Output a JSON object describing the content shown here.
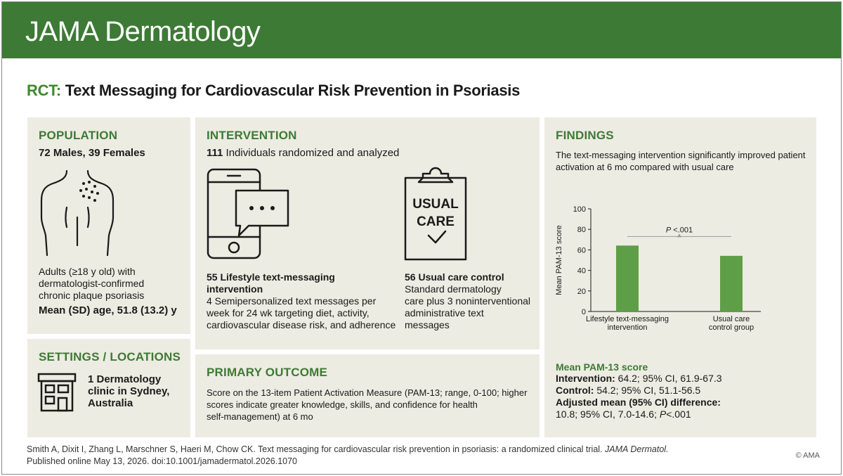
{
  "header": {
    "journal": "JAMA Dermatology"
  },
  "title": {
    "prefix": "RCT:",
    "text": "Text Messaging for Cardiovascular Risk Prevention in Psoriasis"
  },
  "population": {
    "heading": "POPULATION",
    "counts": "72 Males, 39 Females",
    "desc_lines": [
      "Adults (≥18 y old) with",
      "dermatologist-confirmed",
      "chronic plaque psoriasis"
    ],
    "age": "Mean (SD) age, 51.8 (13.2) y",
    "icon": "torso-psoriasis-icon"
  },
  "settings": {
    "heading": "SETTINGS / LOCATIONS",
    "lines": [
      "1 Dermatology",
      "clinic in Sydney,",
      "Australia"
    ],
    "icon": "building-icon"
  },
  "intervention": {
    "heading": "INTERVENTION",
    "randomized_count": "111",
    "randomized_text": "Individuals randomized and analyzed",
    "arm1": {
      "count": "55",
      "title_line1": "Lifestyle text-messaging",
      "title_line2": "intervention",
      "desc_lines": [
        "4 Semipersonalized text messages per",
        "week for 24 wk targeting diet, activity,",
        "cardiovascular disease risk, and adherence"
      ],
      "icon": "phone-message-icon"
    },
    "arm2": {
      "count": "56",
      "title": "Usual care control",
      "desc_lines": [
        "Standard dermatology",
        "care plus 3 noninterventional",
        "administrative text",
        "messages"
      ],
      "icon": "clipboard-icon",
      "icon_text_1": "USUAL",
      "icon_text_2": "CARE"
    }
  },
  "outcome": {
    "heading": "PRIMARY OUTCOME",
    "lines": [
      "Score on the 13-item Patient Activation Measure (PAM-13; range, 0-100; higher",
      "scores indicate greater knowledge, skills, and confidence for health",
      "self-management) at 6 mo"
    ]
  },
  "findings": {
    "heading": "FINDINGS",
    "summary_lines": [
      "The text-messaging intervention significantly improved patient",
      "activation at 6 mo compared with usual care"
    ],
    "score_heading": "Mean PAM-13 score",
    "intervention_label": "Intervention:",
    "intervention_value": "64.2; 95% CI, 61.9-67.3",
    "control_label": "Control:",
    "control_value": "54.2; 95% CI, 51.1-56.5",
    "adjusted_label": "Adjusted mean (95% CI) difference:",
    "adjusted_value_a": "10.8; 95% CI, 7.0-14.6; ",
    "adjusted_p": "P",
    "adjusted_value_b": "<.001"
  },
  "chart_data": {
    "type": "bar",
    "categories": [
      [
        "Lifestyle text-messaging",
        "intervention"
      ],
      [
        "Usual care",
        "control group"
      ]
    ],
    "values": [
      64.2,
      54.2
    ],
    "ylabel": "Mean PAM-13 score",
    "ylim": [
      0,
      100
    ],
    "yticks": [
      0,
      20,
      40,
      60,
      80,
      100
    ],
    "annotation_p": "P",
    "annotation_rest": " <.001",
    "bar_color": "#5e9e47"
  },
  "citation": {
    "line1_a": "Smith A, Dixit I, Zhang L, Marschner S, Haeri M, Chow CK. Text messaging for cardiovascular risk prevention in psoriasis: a randomized clinical trial. ",
    "line1_journal": "JAMA Dermatol.",
    "line2": "Published online May 13, 2026. doi:10.1001/jamadermatol.2026.1070"
  },
  "copyright": "© AMA",
  "colors": {
    "brand": "#3d7a35",
    "panel": "#ecece2",
    "accent": "#3d8a2d"
  }
}
